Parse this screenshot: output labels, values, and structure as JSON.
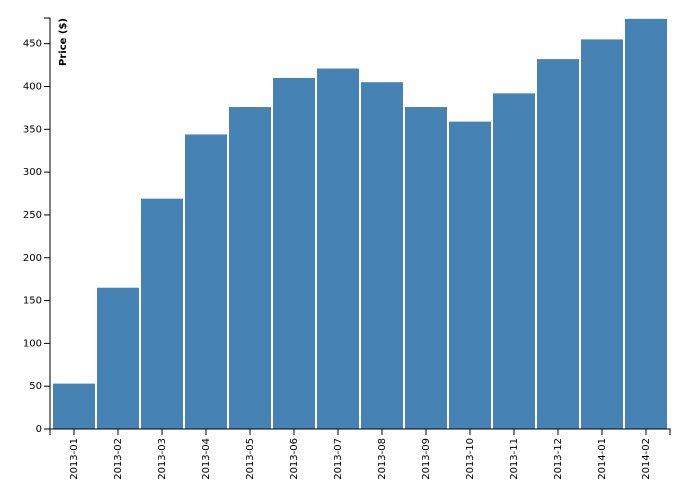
{
  "chart_data": {
    "type": "bar",
    "y_label": "Price ($)",
    "categories": [
      "2013-01",
      "2013-02",
      "2013-03",
      "2013-04",
      "2013-05",
      "2013-06",
      "2013-07",
      "2013-08",
      "2013-09",
      "2013-10",
      "2013-11",
      "2013-12",
      "2014-01",
      "2014-02"
    ],
    "values": [
      53,
      165,
      269,
      344,
      376,
      410,
      421,
      405,
      376,
      359,
      392,
      432,
      455,
      479
    ],
    "color": "#4682b4",
    "ylim": [
      0,
      480
    ],
    "yticks": [
      0,
      50,
      100,
      150,
      200,
      250,
      300,
      350,
      400,
      450
    ],
    "grid": false
  }
}
